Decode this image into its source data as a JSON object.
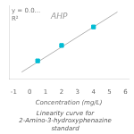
{
  "chart_data": {
    "type": "scatter",
    "xlabel": "Concentration (mg/L)",
    "caption": "Linearity curve for 2-Amino-3-hydroxyphenazine standard",
    "annotations": [
      "AHP",
      "y = 0.0...",
      "R²"
    ],
    "series": [
      {
        "type": "scatter",
        "marker": "square",
        "color": "#00bcd4",
        "x": [
          0.5,
          2.0,
          4.0
        ],
        "values": [
          0.08,
          0.28,
          0.52
        ]
      },
      {
        "type": "line",
        "line_style": "solid",
        "color": "#b0b0b0",
        "x": [
          -0.5,
          5.5
        ],
        "values": [
          -0.065,
          0.715
        ]
      }
    ],
    "xlim": [
      -1.3,
      6.2
    ],
    "xticks": [
      -1,
      0,
      1,
      2,
      3,
      4,
      5,
      6
    ],
    "ylim": [
      -0.15,
      0.8
    ],
    "tick_labels": "x",
    "grid": false
  }
}
